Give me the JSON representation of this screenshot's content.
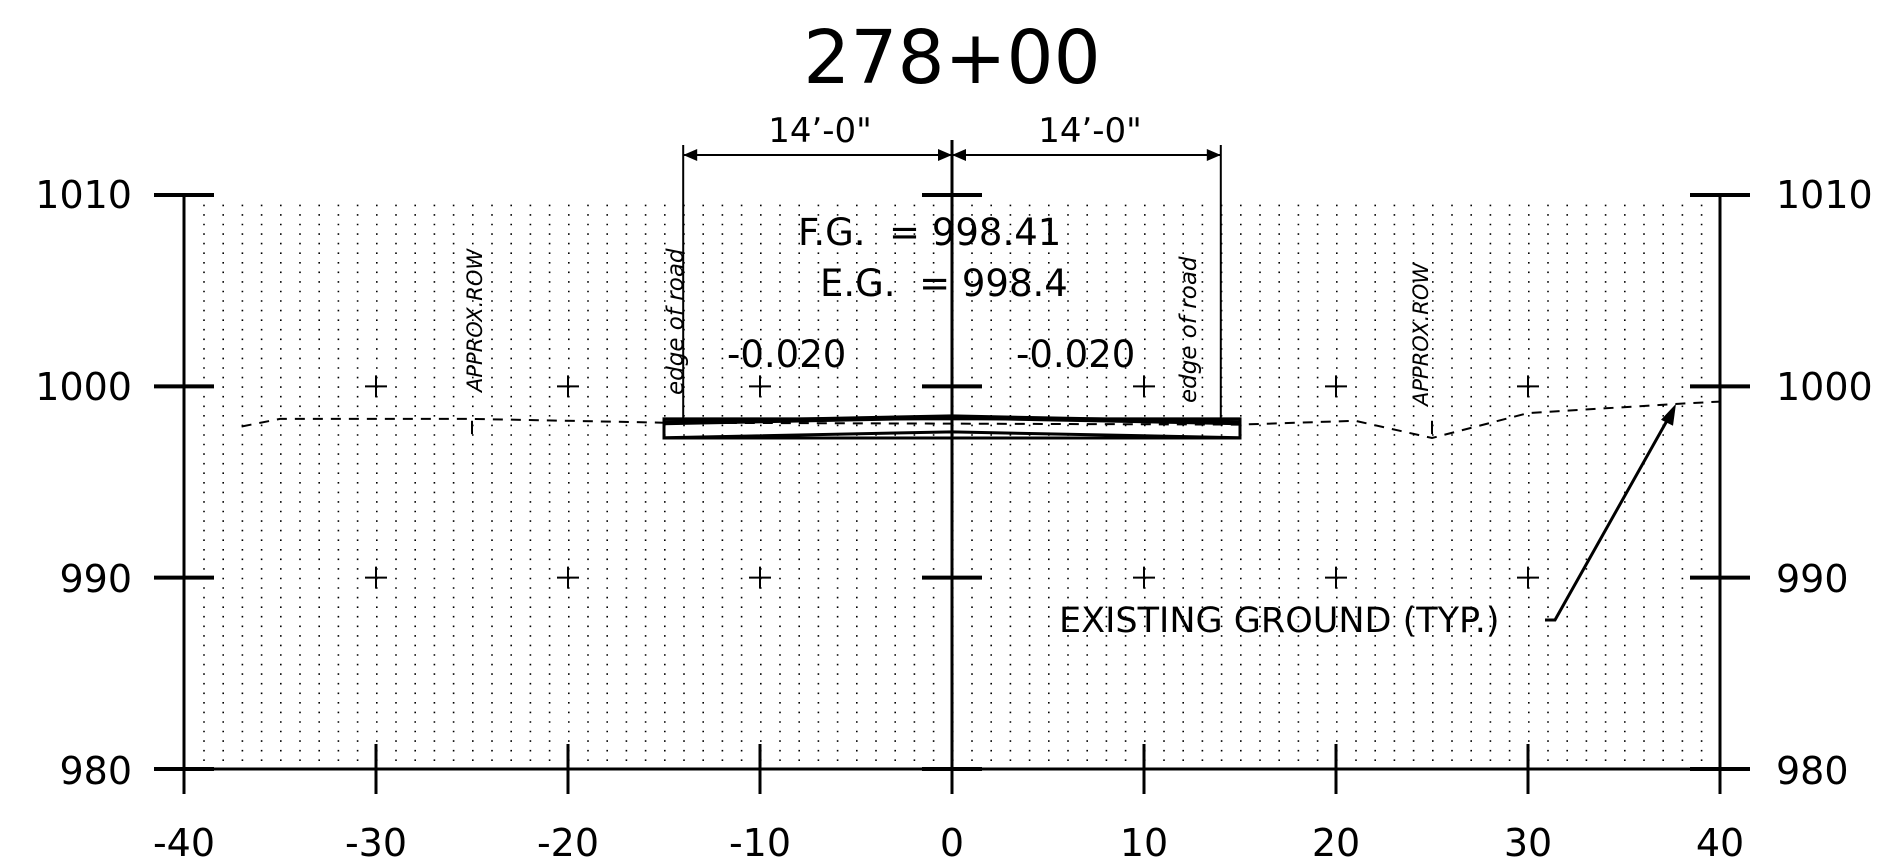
{
  "station_title": "278+00",
  "dimensions": {
    "left_lane": "14’-0\"",
    "right_lane": "14’-0\""
  },
  "grades": {
    "fg": "F.G.  = 998.41",
    "eg": "E.G.  = 998.4",
    "left_slope": "-0.020",
    "right_slope": "-0.020"
  },
  "labels": {
    "approx_row_left": "APPROX.ROW",
    "approx_row_right": "APPROX.ROW",
    "edge_of_road_left": "edge of road",
    "edge_of_road_right": "edge of road",
    "existing_ground": "EXISTING GROUND (TYP.)"
  },
  "axes": {
    "x_ticks": [
      "-40",
      "-30",
      "-20",
      "-10",
      "0",
      "10",
      "20",
      "30",
      "40"
    ],
    "y_ticks_left": [
      "1010",
      "1000",
      "990",
      "980"
    ],
    "y_ticks_right": [
      "1010",
      "1000",
      "990",
      "980"
    ]
  },
  "chart_data": {
    "type": "line",
    "xlim": [
      -40,
      40
    ],
    "ylim": [
      980,
      1010
    ],
    "grid": true,
    "series": [
      {
        "points": [
          [
            -37,
            997.9
          ],
          [
            -35,
            998.3
          ],
          [
            -25,
            998.3
          ],
          [
            -15,
            998.1
          ],
          [
            15,
            998.0
          ],
          [
            21,
            998.2
          ],
          [
            25,
            997.3
          ],
          [
            30,
            998.6
          ],
          [
            38,
            999.1
          ],
          [
            40,
            999.2
          ]
        ]
      },
      {
        "points": [
          [
            -15,
            998.1
          ],
          [
            0,
            998.4
          ],
          [
            15,
            998.1
          ]
        ]
      }
    ],
    "pavement": {
      "x_start": -15,
      "x_end": 15,
      "top": 998.3,
      "bottom": 997.3
    },
    "centerline_x": 0,
    "row_x": [
      -25,
      25
    ],
    "edge_of_road_x": [
      -14,
      14
    ]
  }
}
